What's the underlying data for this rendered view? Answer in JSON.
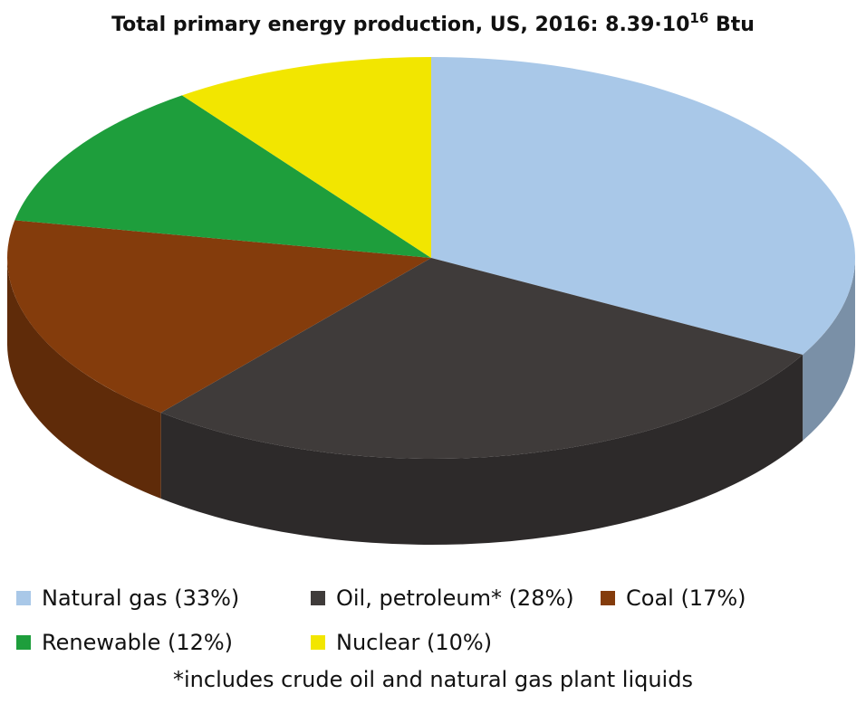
{
  "chart_data": {
    "type": "pie",
    "title": [
      "Total primary energy production, US, 2016: 8.39·10",
      "16",
      " Btu"
    ],
    "categories": [
      "Natural gas (33%)",
      "Oil, petroleum* (28%)",
      "Coal (17%)",
      "Renewable (12%)",
      "Nuclear (10%)"
    ],
    "values": [
      33,
      28,
      17,
      12,
      10
    ],
    "colors": [
      "#a9c8e8",
      "#3f3b3a",
      "#843c0c",
      "#1e9e3c",
      "#f2e600"
    ],
    "footnote": "*includes crude oil and natural gas plant liquids"
  }
}
